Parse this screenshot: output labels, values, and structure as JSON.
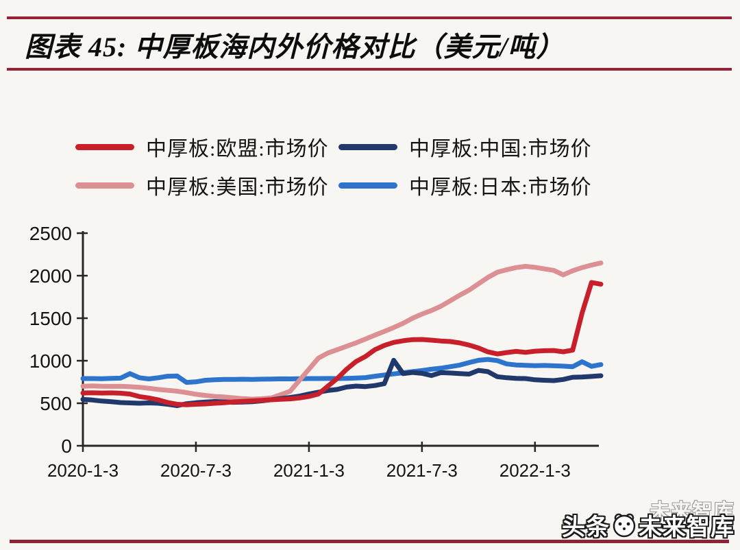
{
  "page": {
    "title": "图表 45:  中厚板海内外价格对比（美元/吨）",
    "watermark": {
      "prefix": "头条",
      "name": "未来智库",
      "ghost": "未来智库"
    }
  },
  "colors": {
    "rule": "#9a2038",
    "eu": "#c8202a",
    "china": "#20386b",
    "us": "#dd9094",
    "japan": "#2d74cd",
    "axis": "#262626"
  },
  "chart_data": {
    "type": "line",
    "title": "中厚板海内外价格对比（美元/吨）",
    "ylabel": "美元/吨",
    "ylim": [
      0,
      2500
    ],
    "xlim_months": [
      0,
      27.5
    ],
    "grid": false,
    "legend_position": "top",
    "x_unit": "months since 2020-1-3, step 0.5",
    "x_start": 0,
    "x_step": 0.5,
    "y_ticks": [
      0,
      500,
      1000,
      1500,
      2000,
      2500
    ],
    "x_ticks": [
      {
        "pos": 0,
        "label": "2020-1-3"
      },
      {
        "pos": 6,
        "label": "2020-7-3"
      },
      {
        "pos": 12,
        "label": "2021-1-3"
      },
      {
        "pos": 18,
        "label": "2021-7-3"
      },
      {
        "pos": 24,
        "label": "2022-1-3"
      }
    ],
    "series": [
      {
        "name": "中厚板:欧盟:市场价",
        "color_key": "eu",
        "values": [
          620,
          623,
          620,
          622,
          618,
          608,
          578,
          562,
          540,
          508,
          488,
          482,
          488,
          492,
          500,
          506,
          516,
          522,
          528,
          534,
          540,
          546,
          552,
          562,
          580,
          608,
          700,
          790,
          900,
          990,
          1050,
          1130,
          1180,
          1215,
          1235,
          1248,
          1250,
          1242,
          1232,
          1226,
          1210,
          1184,
          1150,
          1104,
          1080,
          1096,
          1110,
          1098,
          1112,
          1118,
          1120,
          1105,
          1125,
          1560,
          1920,
          1900
        ]
      },
      {
        "name": "中厚板:中国:市场价",
        "color_key": "china",
        "values": [
          545,
          538,
          526,
          518,
          508,
          504,
          500,
          504,
          500,
          488,
          472,
          494,
          506,
          514,
          520,
          516,
          511,
          514,
          518,
          528,
          542,
          556,
          568,
          584,
          608,
          630,
          650,
          662,
          690,
          702,
          696,
          708,
          730,
          1005,
          848,
          862,
          852,
          826,
          860,
          856,
          848,
          843,
          886,
          872,
          812,
          800,
          792,
          790,
          776,
          770,
          766,
          780,
          806,
          808,
          815,
          823
        ]
      },
      {
        "name": "中厚板:美国:市场价",
        "color_key": "us",
        "values": [
          700,
          703,
          700,
          698,
          700,
          694,
          688,
          676,
          662,
          652,
          642,
          625,
          606,
          592,
          580,
          574,
          564,
          554,
          548,
          553,
          562,
          600,
          640,
          770,
          900,
          1030,
          1090,
          1130,
          1170,
          1210,
          1255,
          1300,
          1345,
          1390,
          1440,
          1500,
          1548,
          1590,
          1640,
          1705,
          1770,
          1830,
          1905,
          1980,
          2040,
          2070,
          2095,
          2110,
          2098,
          2080,
          2062,
          2010,
          2058,
          2095,
          2125,
          2150
        ]
      },
      {
        "name": "中厚板:日本:市场价",
        "color_key": "japan",
        "values": [
          790,
          790,
          788,
          792,
          795,
          848,
          800,
          786,
          800,
          818,
          820,
          745,
          752,
          770,
          776,
          780,
          780,
          782,
          780,
          783,
          785,
          787,
          786,
          788,
          790,
          790,
          791,
          790,
          792,
          796,
          802,
          818,
          832,
          845,
          858,
          872,
          885,
          900,
          912,
          930,
          948,
          978,
          1005,
          1015,
          1002,
          962,
          950,
          946,
          942,
          944,
          940,
          936,
          930,
          988,
          934,
          955
        ]
      }
    ]
  }
}
